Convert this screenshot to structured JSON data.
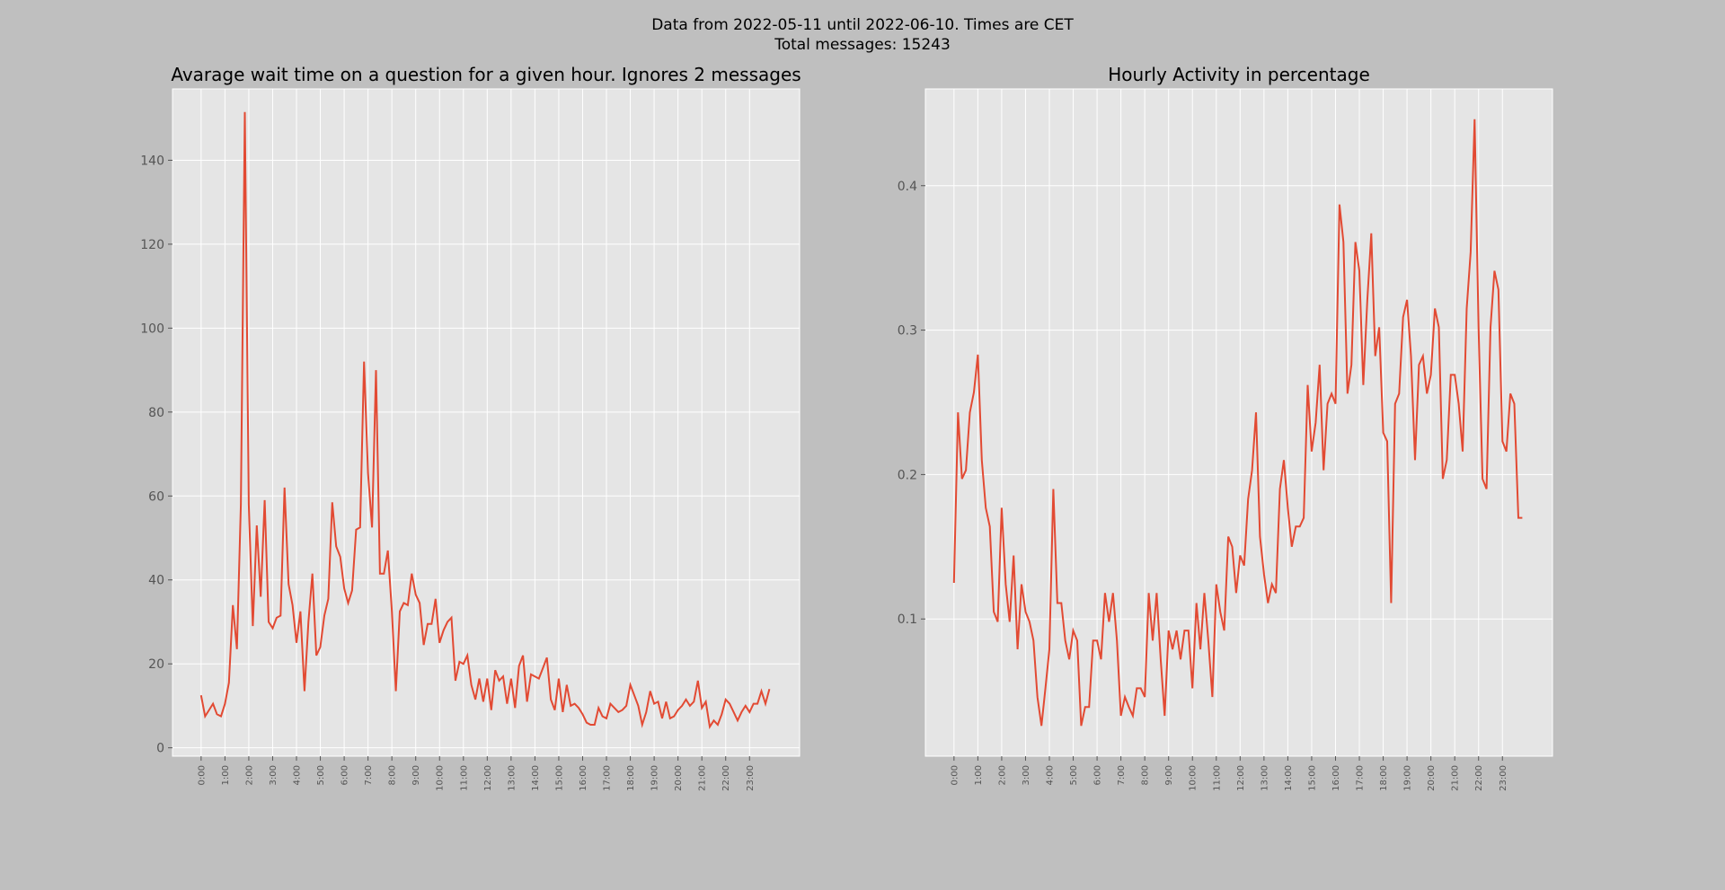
{
  "figure": {
    "suptitle_line1": "Data from 2022-05-11 until 2022-06-10. Times are CET",
    "suptitle_line2": "Total messages: 15243",
    "colors": {
      "line": "#e24a33",
      "axes_bg": "#e5e5e5",
      "figure_bg": "#bfbfbf",
      "grid": "#ffffff"
    }
  },
  "chart_data": [
    {
      "type": "line",
      "title": "Avarage wait time on a question for a given hour. Ignores 2 messages",
      "xlabel": "",
      "ylabel": "",
      "grid": true,
      "x_tick_labels": [
        "0:00",
        "1:00",
        "2:00",
        "3:00",
        "4:00",
        "5:00",
        "6:00",
        "7:00",
        "8:00",
        "9:00",
        "10:00",
        "11:00",
        "12:00",
        "13:00",
        "14:00",
        "15:00",
        "16:00",
        "17:00",
        "18:00",
        "19:00",
        "20:00",
        "21:00",
        "22:00",
        "23:00"
      ],
      "xlim": [
        -1.2,
        25.1
      ],
      "ylim": [
        -2,
        157
      ],
      "yticks": [
        0,
        20,
        40,
        60,
        80,
        100,
        120,
        140
      ],
      "series": [
        {
          "values": [
            12.5,
            7.5,
            9,
            10.5,
            8,
            7.5,
            10.5,
            15.5,
            34,
            23.5,
            58,
            151.5,
            58,
            29,
            53,
            36,
            59,
            30,
            28.5,
            31,
            31.5,
            62,
            39,
            34,
            25,
            32.5,
            13.5,
            30,
            41.5,
            22,
            24,
            31.5,
            35.5,
            58.5,
            48,
            45.5,
            38,
            34.5,
            37.5,
            52,
            52.5,
            92,
            65.5,
            52.5,
            90,
            41.5,
            41.5,
            47,
            32.5,
            13.5,
            32.5,
            34.5,
            34,
            41.5,
            36.5,
            34.5,
            24.5,
            29.5,
            29.5,
            35.5,
            25,
            28,
            30,
            31,
            16,
            20.5,
            20,
            22,
            15,
            11.5,
            16.5,
            11,
            16.5,
            9,
            18.5,
            16,
            17,
            10.5,
            16.5,
            9.5,
            19.5,
            22,
            11,
            17.5,
            17,
            16.5,
            19,
            21.5,
            11.5,
            9,
            16.5,
            8.5,
            15,
            10,
            10.5,
            9.5,
            8,
            6,
            5.5,
            5.5,
            9.5,
            7.5,
            7,
            10.5,
            9.5,
            8.5,
            9,
            10,
            15,
            12.5,
            10,
            5.5,
            8.5,
            13.5,
            10.5,
            11,
            7,
            11,
            7,
            7.5,
            9,
            10,
            11.5,
            10,
            11,
            16,
            9.5,
            11,
            5,
            6.5,
            5.5,
            8,
            11.5,
            10.5,
            8.5,
            6.5,
            8.5,
            10,
            8.5,
            10.5,
            10.5,
            13.5,
            10.5,
            14
          ]
        }
      ]
    },
    {
      "type": "line",
      "title": "Hourly Activity in percentage",
      "xlabel": "",
      "ylabel": "",
      "grid": true,
      "x_tick_labels": [
        "0:00",
        "1:00",
        "2:00",
        "3:00",
        "4:00",
        "5:00",
        "6:00",
        "7:00",
        "8:00",
        "9:00",
        "10:00",
        "11:00",
        "12:00",
        "13:00",
        "14:00",
        "15:00",
        "16:00",
        "17:00",
        "18:00",
        "19:00",
        "20:00",
        "21:00",
        "22:00",
        "23:00"
      ],
      "xlim": [
        -1.2,
        25.1
      ],
      "ylim": [
        0.005,
        0.467
      ],
      "yticks": [
        0.1,
        0.2,
        0.3,
        0.4
      ],
      "series": [
        {
          "values": [
            0.125,
            0.243,
            0.197,
            0.203,
            0.243,
            0.257,
            0.283,
            0.21,
            0.177,
            0.164,
            0.105,
            0.098,
            0.177,
            0.124,
            0.098,
            0.144,
            0.079,
            0.124,
            0.105,
            0.098,
            0.085,
            0.046,
            0.026,
            0.052,
            0.079,
            0.19,
            0.111,
            0.111,
            0.085,
            0.072,
            0.092,
            0.085,
            0.026,
            0.039,
            0.039,
            0.085,
            0.085,
            0.072,
            0.118,
            0.098,
            0.118,
            0.085,
            0.033,
            0.046,
            0.039,
            0.033,
            0.052,
            0.052,
            0.046,
            0.118,
            0.085,
            0.118,
            0.072,
            0.033,
            0.092,
            0.079,
            0.092,
            0.072,
            0.092,
            0.092,
            0.052,
            0.111,
            0.079,
            0.118,
            0.085,
            0.046,
            0.124,
            0.105,
            0.092,
            0.157,
            0.15,
            0.118,
            0.144,
            0.137,
            0.183,
            0.203,
            0.243,
            0.157,
            0.131,
            0.111,
            0.124,
            0.118,
            0.19,
            0.21,
            0.177,
            0.15,
            0.164,
            0.164,
            0.17,
            0.262,
            0.216,
            0.236,
            0.276,
            0.203,
            0.249,
            0.256,
            0.249,
            0.387,
            0.361,
            0.256,
            0.276,
            0.361,
            0.341,
            0.262,
            0.321,
            0.367,
            0.282,
            0.302,
            0.229,
            0.223,
            0.111,
            0.249,
            0.256,
            0.309,
            0.321,
            0.282,
            0.21,
            0.276,
            0.282,
            0.256,
            0.269,
            0.315,
            0.302,
            0.197,
            0.21,
            0.269,
            0.269,
            0.249,
            0.216,
            0.315,
            0.354,
            0.446,
            0.302,
            0.197,
            0.19,
            0.302,
            0.341,
            0.328,
            0.223,
            0.216,
            0.256,
            0.249,
            0.17,
            0.17
          ]
        }
      ]
    }
  ]
}
